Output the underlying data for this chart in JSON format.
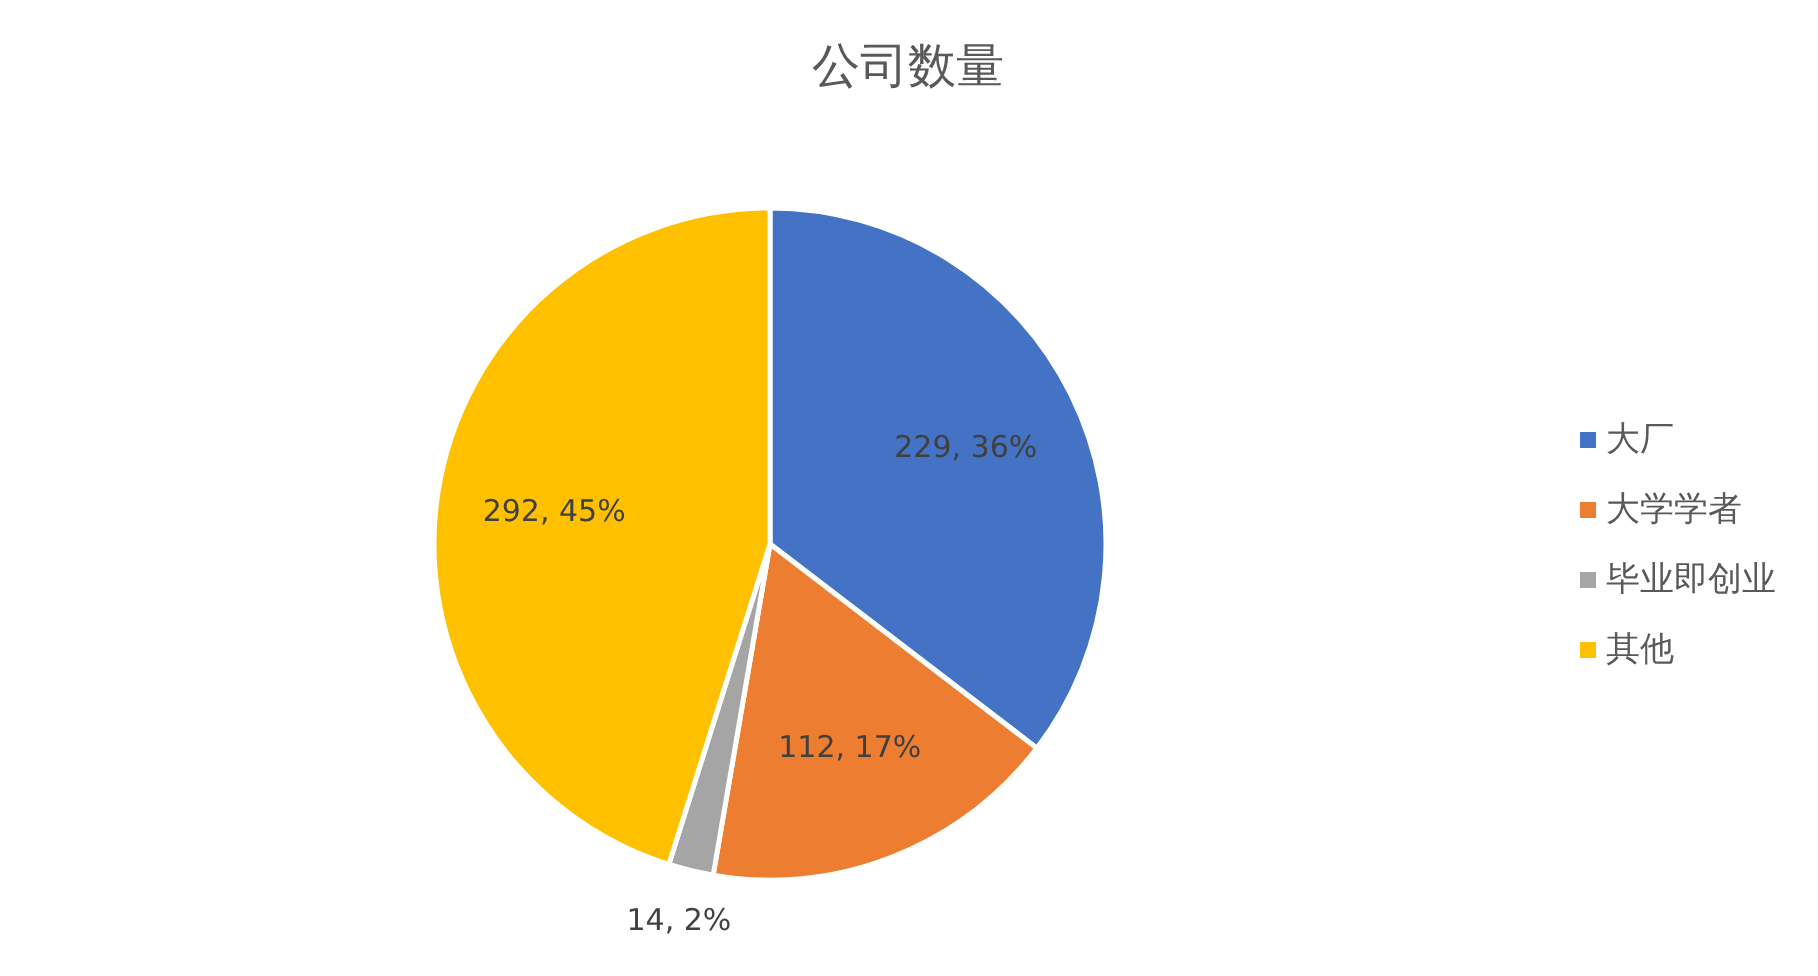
{
  "chart_data": {
    "type": "pie",
    "title": "公司数量",
    "categories": [
      "大厂",
      "大学学者",
      "毕业即创业",
      "其他"
    ],
    "values": [
      229,
      112,
      14,
      292
    ],
    "colors": [
      "#4472c4",
      "#ed7d31",
      "#a5a5a5",
      "#ffc000"
    ],
    "value_labels": [
      "229, 36%",
      "112, 17%",
      "14, 2%",
      "292, 45%"
    ],
    "legend": "right"
  }
}
